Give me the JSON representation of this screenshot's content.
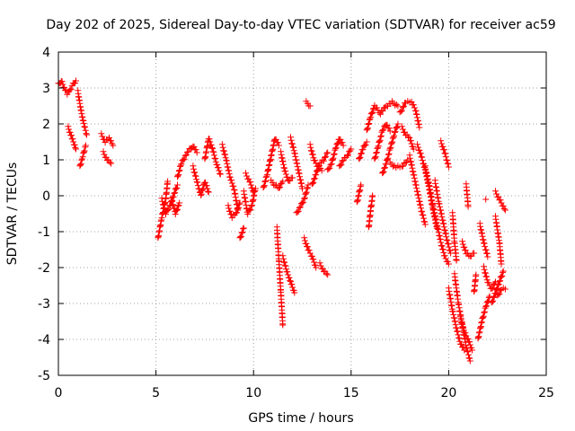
{
  "chart_data": {
    "type": "scatter",
    "title": "Day 202 of 2025, Sidereal Day-to-day VTEC variation (SDTVAR) for receiver ac59",
    "xlabel": "GPS time / hours",
    "ylabel": "SDTVAR / TECUs",
    "xlim": [
      0,
      25
    ],
    "ylim": [
      -5,
      4
    ],
    "xticks": [
      "0",
      "5",
      "10",
      "15",
      "20",
      "25"
    ],
    "yticks": [
      "-5",
      "-4",
      "-3",
      "-2",
      "-1",
      "0",
      "1",
      "2",
      "3",
      "4"
    ],
    "grid": true,
    "marker": "+",
    "series_color": "#ff0000",
    "traces": [
      [
        [
          0.0,
          3.1
        ],
        [
          0.15,
          3.2
        ],
        [
          0.3,
          3.0
        ],
        [
          0.45,
          2.85
        ],
        [
          0.6,
          2.95
        ],
        [
          0.75,
          3.1
        ],
        [
          0.9,
          3.2
        ]
      ],
      [
        [
          0.5,
          1.9
        ],
        [
          0.7,
          1.6
        ],
        [
          0.9,
          1.3
        ]
      ],
      [
        [
          1.0,
          2.9
        ],
        [
          1.15,
          2.4
        ],
        [
          1.3,
          2.0
        ],
        [
          1.45,
          1.7
        ]
      ],
      [
        [
          1.1,
          0.8
        ],
        [
          1.25,
          1.1
        ],
        [
          1.4,
          1.4
        ]
      ],
      [
        [
          2.2,
          1.7
        ],
        [
          2.4,
          1.5
        ],
        [
          2.6,
          1.6
        ],
        [
          2.8,
          1.4
        ]
      ],
      [
        [
          2.3,
          1.2
        ],
        [
          2.5,
          1.0
        ],
        [
          2.7,
          0.9
        ]
      ],
      [
        [
          5.1,
          -1.2
        ],
        [
          5.3,
          -0.6
        ],
        [
          5.5,
          -0.1
        ],
        [
          5.6,
          0.4
        ]
      ],
      [
        [
          5.3,
          -0.1
        ],
        [
          5.5,
          -0.5
        ],
        [
          5.7,
          -0.3
        ],
        [
          5.9,
          0.0
        ],
        [
          6.1,
          0.3
        ]
      ],
      [
        [
          5.8,
          -0.1
        ],
        [
          6.0,
          -0.5
        ],
        [
          6.2,
          -0.2
        ]
      ],
      [
        [
          6.1,
          0.5
        ],
        [
          6.3,
          0.9
        ],
        [
          6.6,
          1.2
        ],
        [
          6.9,
          1.4
        ],
        [
          7.1,
          1.2
        ]
      ],
      [
        [
          6.9,
          0.8
        ],
        [
          7.1,
          0.4
        ],
        [
          7.3,
          0.0
        ],
        [
          7.5,
          0.4
        ],
        [
          7.7,
          0.1
        ]
      ],
      [
        [
          7.5,
          1.0
        ],
        [
          7.7,
          1.6
        ],
        [
          7.9,
          1.3
        ],
        [
          8.1,
          0.9
        ],
        [
          8.3,
          0.6
        ]
      ],
      [
        [
          8.4,
          1.4
        ],
        [
          8.6,
          1.0
        ],
        [
          8.8,
          0.5
        ],
        [
          9.0,
          0.2
        ],
        [
          9.2,
          -0.4
        ]
      ],
      [
        [
          8.7,
          -0.3
        ],
        [
          8.9,
          -0.6
        ],
        [
          9.1,
          -0.5
        ],
        [
          9.3,
          -0.2
        ]
      ],
      [
        [
          9.5,
          0.1
        ],
        [
          9.7,
          -0.5
        ],
        [
          9.9,
          -0.3
        ],
        [
          10.1,
          0.2
        ]
      ],
      [
        [
          9.3,
          -1.2
        ],
        [
          9.5,
          -0.9
        ]
      ],
      [
        [
          9.6,
          0.6
        ],
        [
          9.8,
          0.4
        ],
        [
          10.0,
          0.1
        ]
      ],
      [
        [
          10.5,
          0.2
        ],
        [
          10.7,
          0.6
        ],
        [
          10.9,
          1.1
        ],
        [
          11.1,
          1.6
        ],
        [
          11.3,
          1.4
        ]
      ],
      [
        [
          10.9,
          0.4
        ],
        [
          11.1,
          0.3
        ],
        [
          11.3,
          0.2
        ],
        [
          11.5,
          0.4
        ]
      ],
      [
        [
          11.4,
          1.2
        ],
        [
          11.6,
          0.7
        ],
        [
          11.8,
          0.4
        ],
        [
          12.0,
          0.5
        ]
      ],
      [
        [
          11.2,
          -0.9
        ],
        [
          11.3,
          -1.8
        ],
        [
          11.4,
          -2.7
        ],
        [
          11.5,
          -3.6
        ]
      ],
      [
        [
          11.5,
          -1.7
        ],
        [
          11.7,
          -2.1
        ],
        [
          11.9,
          -2.4
        ],
        [
          12.1,
          -2.7
        ]
      ],
      [
        [
          11.9,
          1.6
        ],
        [
          12.1,
          1.2
        ],
        [
          12.3,
          0.7
        ],
        [
          12.5,
          0.2
        ]
      ],
      [
        [
          12.2,
          -0.5
        ],
        [
          12.4,
          -0.3
        ],
        [
          12.6,
          -0.1
        ],
        [
          12.8,
          0.3
        ]
      ],
      [
        [
          12.6,
          -1.2
        ],
        [
          12.8,
          -1.5
        ],
        [
          13.0,
          -1.7
        ],
        [
          13.2,
          -2.0
        ]
      ],
      [
        [
          13.4,
          -1.9
        ],
        [
          13.6,
          -2.1
        ],
        [
          13.8,
          -2.2
        ]
      ],
      [
        [
          12.7,
          2.6
        ],
        [
          12.9,
          2.5
        ]
      ],
      [
        [
          12.9,
          1.4
        ],
        [
          13.1,
          1.0
        ],
        [
          13.3,
          0.8
        ],
        [
          13.5,
          0.7
        ]
      ],
      [
        [
          13.0,
          0.3
        ],
        [
          13.2,
          0.6
        ],
        [
          13.4,
          0.9
        ],
        [
          13.6,
          1.0
        ],
        [
          13.8,
          1.2
        ]
      ],
      [
        [
          13.8,
          0.7
        ],
        [
          14.0,
          0.9
        ],
        [
          14.2,
          1.3
        ],
        [
          14.4,
          1.6
        ],
        [
          14.6,
          1.4
        ]
      ],
      [
        [
          14.4,
          0.8
        ],
        [
          14.6,
          1.0
        ],
        [
          14.8,
          1.1
        ],
        [
          15.0,
          1.3
        ]
      ],
      [
        [
          15.4,
          1.0
        ],
        [
          15.6,
          1.3
        ],
        [
          15.8,
          1.5
        ]
      ],
      [
        [
          15.3,
          -0.2
        ],
        [
          15.5,
          0.3
        ]
      ],
      [
        [
          15.9,
          -0.9
        ],
        [
          16.0,
          -0.4
        ],
        [
          16.1,
          0.0
        ]
      ],
      [
        [
          15.8,
          1.8
        ],
        [
          16.0,
          2.2
        ],
        [
          16.2,
          2.5
        ],
        [
          16.5,
          2.3
        ],
        [
          16.8,
          2.5
        ],
        [
          17.1,
          2.6
        ],
        [
          17.4,
          2.5
        ]
      ],
      [
        [
          16.2,
          1.0
        ],
        [
          16.4,
          1.4
        ],
        [
          16.6,
          1.8
        ],
        [
          16.8,
          2.0
        ],
        [
          17.0,
          1.8
        ]
      ],
      [
        [
          16.6,
          0.6
        ],
        [
          16.8,
          0.9
        ],
        [
          17.0,
          1.3
        ],
        [
          17.2,
          1.7
        ],
        [
          17.4,
          2.0
        ]
      ],
      [
        [
          17.0,
          0.9
        ],
        [
          17.3,
          0.8
        ],
        [
          17.6,
          0.8
        ],
        [
          17.9,
          1.0
        ]
      ],
      [
        [
          17.5,
          2.3
        ],
        [
          17.8,
          2.6
        ],
        [
          18.1,
          2.6
        ],
        [
          18.3,
          2.4
        ],
        [
          18.5,
          1.9
        ]
      ],
      [
        [
          17.6,
          1.9
        ],
        [
          17.8,
          1.7
        ],
        [
          18.0,
          1.6
        ],
        [
          18.2,
          1.3
        ]
      ],
      [
        [
          18.0,
          1.1
        ],
        [
          18.2,
          0.6
        ],
        [
          18.4,
          0.1
        ],
        [
          18.6,
          -0.4
        ],
        [
          18.8,
          -0.8
        ]
      ],
      [
        [
          18.4,
          1.4
        ],
        [
          18.6,
          1.1
        ],
        [
          18.8,
          0.7
        ],
        [
          19.0,
          0.2
        ],
        [
          19.2,
          -0.4
        ],
        [
          19.4,
          -0.9
        ]
      ],
      [
        [
          18.8,
          0.8
        ],
        [
          19.0,
          0.3
        ],
        [
          19.2,
          -0.3
        ],
        [
          19.4,
          -0.8
        ],
        [
          19.6,
          -1.3
        ],
        [
          19.8,
          -1.7
        ],
        [
          20.0,
          -1.9
        ]
      ],
      [
        [
          19.3,
          0.4
        ],
        [
          19.5,
          -0.2
        ],
        [
          19.7,
          -0.7
        ],
        [
          19.9,
          -1.2
        ],
        [
          20.1,
          -1.6
        ]
      ],
      [
        [
          19.6,
          1.5
        ],
        [
          19.8,
          1.2
        ],
        [
          20.0,
          0.8
        ]
      ],
      [
        [
          20.2,
          -0.5
        ],
        [
          20.3,
          -1.3
        ],
        [
          20.4,
          -1.8
        ]
      ],
      [
        [
          20.0,
          -2.6
        ],
        [
          20.2,
          -3.2
        ],
        [
          20.4,
          -3.7
        ],
        [
          20.6,
          -4.1
        ],
        [
          20.8,
          -4.3
        ]
      ],
      [
        [
          20.3,
          -2.2
        ],
        [
          20.5,
          -3.0
        ],
        [
          20.7,
          -3.6
        ],
        [
          20.9,
          -4.2
        ],
        [
          21.1,
          -4.6
        ]
      ],
      [
        [
          20.6,
          -3.4
        ],
        [
          20.8,
          -3.8
        ],
        [
          21.0,
          -4.0
        ],
        [
          21.2,
          -4.3
        ]
      ],
      [
        [
          20.7,
          -1.3
        ],
        [
          20.9,
          -1.6
        ],
        [
          21.1,
          -1.7
        ],
        [
          21.3,
          -1.6
        ]
      ],
      [
        [
          20.9,
          0.3
        ],
        [
          21.0,
          -0.3
        ]
      ],
      [
        [
          21.3,
          -2.7
        ],
        [
          21.4,
          -2.2
        ]
      ],
      [
        [
          21.5,
          -4.0
        ],
        [
          21.7,
          -3.5
        ],
        [
          21.9,
          -3.1
        ],
        [
          22.1,
          -2.8
        ]
      ],
      [
        [
          21.6,
          -0.8
        ],
        [
          21.8,
          -1.3
        ],
        [
          22.0,
          -1.7
        ]
      ],
      [
        [
          21.8,
          -2.0
        ],
        [
          22.0,
          -2.4
        ],
        [
          22.2,
          -2.6
        ],
        [
          22.4,
          -2.4
        ]
      ],
      [
        [
          21.9,
          -0.1
        ]
      ],
      [
        [
          22.4,
          -0.6
        ],
        [
          22.6,
          -1.3
        ],
        [
          22.7,
          -1.9
        ]
      ],
      [
        [
          22.2,
          -3.0
        ],
        [
          22.4,
          -2.7
        ],
        [
          22.6,
          -2.4
        ],
        [
          22.8,
          -2.1
        ]
      ],
      [
        [
          22.5,
          -2.8
        ],
        [
          22.7,
          -2.6
        ],
        [
          22.9,
          -2.6
        ]
      ],
      [
        [
          22.4,
          0.1
        ],
        [
          22.6,
          -0.1
        ],
        [
          22.8,
          -0.3
        ],
        [
          22.9,
          -0.4
        ]
      ]
    ]
  }
}
